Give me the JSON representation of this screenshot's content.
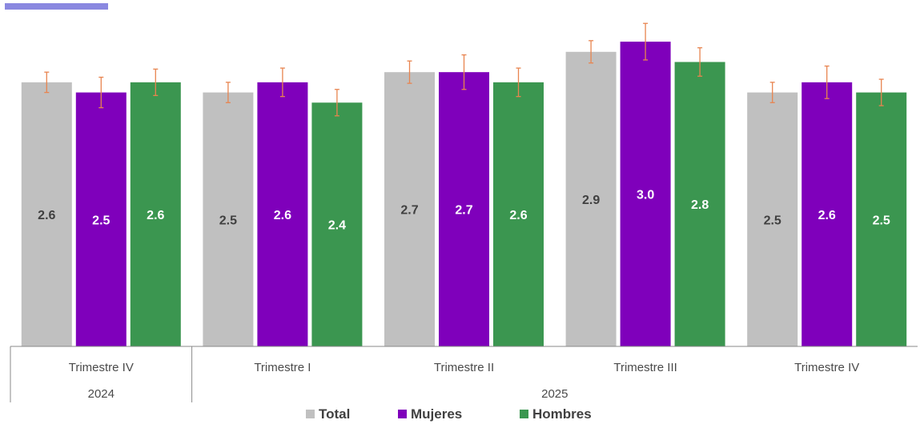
{
  "accent_color": "#8a88e0",
  "chart_data": {
    "type": "bar",
    "title": "",
    "xlabel": "",
    "ylabel": "",
    "ylim": [
      0,
      3.3
    ],
    "grid": false,
    "error_bar_color": "#e8844f",
    "groups": [
      {
        "label": "2024",
        "categories": [
          "Trimestre IV"
        ]
      },
      {
        "label": "2025",
        "categories": [
          "Trimestre I",
          "Trimestre II",
          "Trimestre III",
          "Trimestre IV"
        ]
      }
    ],
    "categories": [
      "Trimestre IV",
      "Trimestre I",
      "Trimestre II",
      "Trimestre III",
      "Trimestre IV"
    ],
    "series": [
      {
        "name": "Total",
        "color": "#c0c0c0",
        "label_color": "#404040",
        "values": [
          2.6,
          2.5,
          2.7,
          2.9,
          2.5
        ],
        "labels": [
          "2.6",
          "2.5",
          "2.7",
          "2.9",
          "2.5"
        ],
        "errors": [
          0.1,
          0.1,
          0.11,
          0.11,
          0.1
        ]
      },
      {
        "name": "Mujeres",
        "color": "#7f00bb",
        "label_color": "#ffffff",
        "values": [
          2.5,
          2.6,
          2.7,
          3.0,
          2.6
        ],
        "labels": [
          "2.5",
          "2.6",
          "2.7",
          "3.0",
          "2.6"
        ],
        "errors": [
          0.15,
          0.14,
          0.17,
          0.18,
          0.16
        ]
      },
      {
        "name": "Hombres",
        "color": "#3b9650",
        "label_color": "#ffffff",
        "values": [
          2.6,
          2.4,
          2.6,
          2.8,
          2.5
        ],
        "labels": [
          "2.6",
          "2.4",
          "2.6",
          "2.8",
          "2.5"
        ],
        "errors": [
          0.13,
          0.13,
          0.14,
          0.14,
          0.13
        ]
      }
    ],
    "legend": {
      "placement": "bottom"
    }
  }
}
